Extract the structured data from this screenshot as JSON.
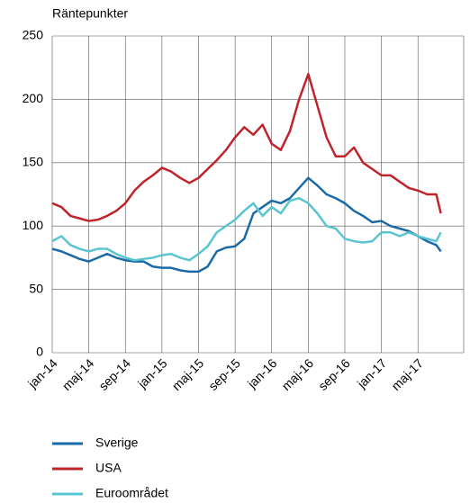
{
  "chart_data": {
    "type": "line",
    "y_label": "Räntepunkter",
    "x": [
      0,
      1,
      2,
      3,
      4,
      5,
      6,
      7,
      8,
      9,
      10,
      11,
      12,
      13,
      14,
      15,
      16,
      17,
      18,
      19,
      20,
      21,
      22,
      23,
      24,
      25,
      26,
      27,
      28,
      29,
      30,
      31,
      32,
      33,
      34,
      35,
      36,
      37,
      38,
      39,
      40,
      41,
      42,
      42.5
    ],
    "series": [
      {
        "name": "Sverige",
        "color": "#1b6aa8",
        "values": [
          82,
          80,
          77,
          74,
          72,
          75,
          78,
          75,
          73,
          72,
          72,
          68,
          67,
          67,
          65,
          64,
          64,
          68,
          80,
          83,
          84,
          90,
          110,
          115,
          120,
          118,
          122,
          130,
          138,
          132,
          125,
          122,
          118,
          112,
          108,
          103,
          104,
          100,
          98,
          96,
          92,
          88,
          85,
          80
        ]
      },
      {
        "name": "USA",
        "color": "#c0242b",
        "values": [
          118,
          115,
          108,
          106,
          104,
          105,
          108,
          112,
          118,
          128,
          135,
          140,
          146,
          143,
          138,
          134,
          138,
          145,
          152,
          160,
          170,
          178,
          172,
          180,
          165,
          160,
          175,
          200,
          220,
          195,
          170,
          155,
          155,
          162,
          150,
          145,
          140,
          140,
          135,
          130,
          128,
          125,
          125,
          110
        ]
      },
      {
        "name": "Euroområdet",
        "color": "#5bc4d1",
        "values": [
          88,
          92,
          85,
          82,
          80,
          82,
          82,
          78,
          75,
          73,
          74,
          75,
          77,
          78,
          75,
          73,
          78,
          84,
          95,
          100,
          105,
          112,
          118,
          108,
          115,
          110,
          120,
          122,
          118,
          110,
          100,
          98,
          90,
          88,
          87,
          88,
          95,
          95,
          92,
          95,
          92,
          90,
          88,
          95
        ]
      }
    ],
    "xlim": [
      0,
      45
    ],
    "xticks": [
      {
        "value": 0,
        "label": "jan-14"
      },
      {
        "value": 4,
        "label": "maj-14"
      },
      {
        "value": 8,
        "label": "sep-14"
      },
      {
        "value": 12,
        "label": "jan-15"
      },
      {
        "value": 16,
        "label": "maj-15"
      },
      {
        "value": 20,
        "label": "sep-15"
      },
      {
        "value": 24,
        "label": "jan-16"
      },
      {
        "value": 28,
        "label": "maj-16"
      },
      {
        "value": 32,
        "label": "sep-16"
      },
      {
        "value": 36,
        "label": "jan-17"
      },
      {
        "value": 40,
        "label": "maj-17"
      }
    ],
    "ylim": [
      0,
      250
    ],
    "yticks": [
      0,
      50,
      100,
      150,
      200,
      250
    ],
    "grid": true
  }
}
